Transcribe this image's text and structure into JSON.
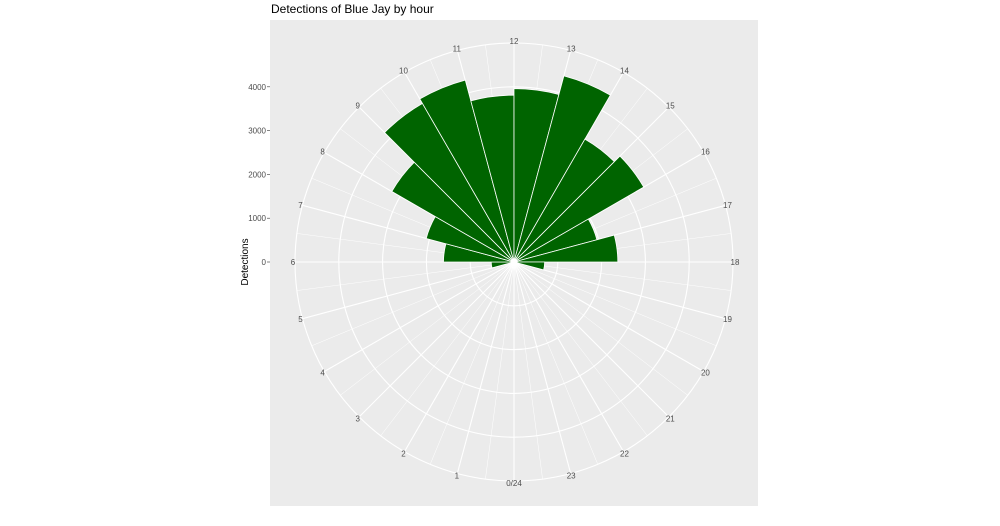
{
  "chart_data": {
    "type": "bar",
    "coord": "polar",
    "title": "Detections of Blue Jay by hour",
    "xlabel": "",
    "ylabel": "Detections",
    "hour_labels": [
      "0/24",
      "1",
      "2",
      "3",
      "4",
      "5",
      "6",
      "7",
      "8",
      "9",
      "10",
      "11",
      "12",
      "13",
      "14",
      "15",
      "16",
      "17",
      "18",
      "19",
      "20",
      "21",
      "22",
      "23"
    ],
    "y_ticks": [
      0,
      1000,
      2000,
      3000,
      4000
    ],
    "y_tick_labels": [
      "0",
      "1000",
      "2000",
      "3000",
      "4000"
    ],
    "ylim": [
      0,
      5000
    ],
    "bar_color": "#006400",
    "categories": [
      0,
      1,
      2,
      3,
      4,
      5,
      6,
      7,
      8,
      9,
      10,
      11,
      12,
      13,
      14,
      15,
      16,
      17,
      18,
      19,
      20,
      21,
      22,
      23
    ],
    "values": [
      0,
      0,
      0,
      0,
      0,
      520,
      1610,
      2075,
      3220,
      4180,
      4300,
      3810,
      3960,
      4400,
      3240,
      3420,
      1960,
      2370,
      700,
      0,
      0,
      0,
      0,
      0
    ]
  }
}
